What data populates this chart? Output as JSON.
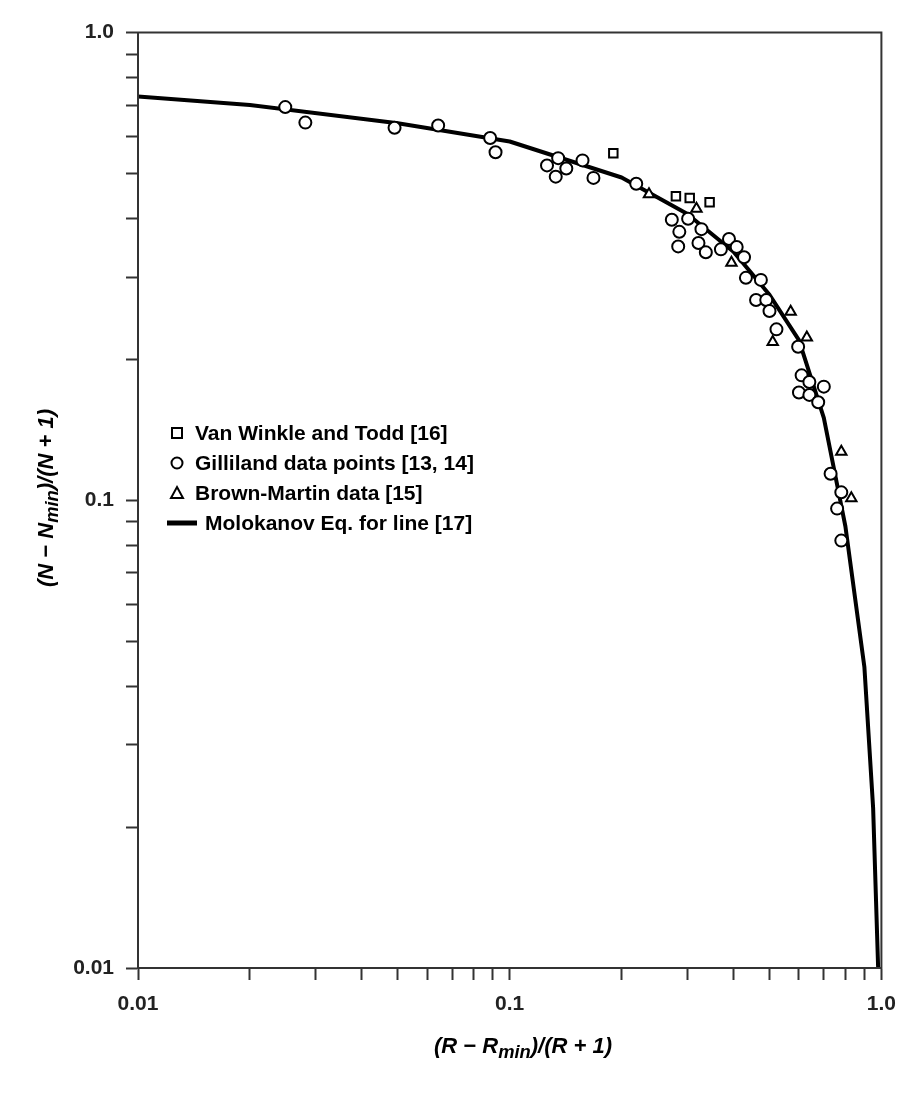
{
  "chart_data": {
    "type": "scatter",
    "xlabel": "(R − R$_{min}$)/(R + 1)",
    "ylabel": "(N − N$_{min}$)/(N + 1)",
    "log": "xy",
    "grid": false,
    "legend": "left",
    "xlim": [
      0.01,
      1
    ],
    "ylim": [
      0.01,
      1
    ],
    "xticks": [
      0.01,
      {
        "value": 0.02,
        "label": null
      },
      {
        "value": 0.03,
        "label": null
      },
      {
        "value": 0.04,
        "label": null
      },
      {
        "value": 0.05,
        "label": null
      },
      {
        "value": 0.06,
        "label": null
      },
      {
        "value": 0.07,
        "label": null
      },
      {
        "value": 0.08,
        "label": null
      },
      {
        "value": 0.09,
        "label": null
      },
      0.1,
      {
        "value": 0.2,
        "label": null
      },
      {
        "value": 0.3,
        "label": null
      },
      {
        "value": 0.4,
        "label": null
      },
      {
        "value": 0.5,
        "label": null
      },
      {
        "value": 0.6,
        "label": null
      },
      {
        "value": 0.7,
        "label": null
      },
      {
        "value": 0.8,
        "label": null
      },
      {
        "value": 0.9,
        "label": null
      },
      {
        "value": 1,
        "label": "1.0"
      }
    ],
    "yticks": [
      0.01,
      {
        "value": 0.02,
        "label": null
      },
      {
        "value": 0.03,
        "label": null
      },
      {
        "value": 0.04,
        "label": null
      },
      {
        "value": 0.05,
        "label": null
      },
      {
        "value": 0.06,
        "label": null
      },
      {
        "value": 0.07,
        "label": null
      },
      {
        "value": 0.08,
        "label": null
      },
      {
        "value": 0.09,
        "label": null
      },
      0.1,
      {
        "value": 0.2,
        "label": null
      },
      {
        "value": 0.3,
        "label": null
      },
      {
        "value": 0.4,
        "label": null
      },
      {
        "value": 0.5,
        "label": null
      },
      {
        "value": 0.6,
        "label": null
      },
      {
        "value": 0.7,
        "label": null
      },
      {
        "value": 0.8,
        "label": null
      },
      {
        "value": 0.9,
        "label": null
      },
      {
        "value": 1,
        "label": "1.0"
      }
    ],
    "series": [
      {
        "name": "Van Winkle and Todd [16]",
        "type": "scatter",
        "marker": "square",
        "color": "#000000",
        "x": [
          0.19,
          0.28,
          0.305,
          0.345
        ],
        "values": [
          0.552,
          0.447,
          0.443,
          0.434
        ]
      },
      {
        "name": "Gilliland data points [13, 14]",
        "type": "scatter",
        "marker": "circle",
        "color": "#000000",
        "x": [
          0.0249,
          0.0282,
          0.049,
          0.0642,
          0.0886,
          0.0916,
          0.126,
          0.135,
          0.133,
          0.142,
          0.157,
          0.168,
          0.219,
          0.273,
          0.286,
          0.284,
          0.302,
          0.322,
          0.328,
          0.337,
          0.37,
          0.389,
          0.408,
          0.427,
          0.432,
          0.474,
          0.46,
          0.49,
          0.5,
          0.522,
          0.597,
          0.61,
          0.6,
          0.64,
          0.64,
          0.7,
          0.676,
          0.73,
          0.78,
          0.76,
          0.78
        ],
        "values": [
          0.693,
          0.642,
          0.626,
          0.633,
          0.595,
          0.555,
          0.52,
          0.539,
          0.492,
          0.512,
          0.533,
          0.489,
          0.475,
          0.398,
          0.375,
          0.349,
          0.4,
          0.355,
          0.38,
          0.339,
          0.344,
          0.362,
          0.348,
          0.331,
          0.299,
          0.296,
          0.268,
          0.268,
          0.254,
          0.232,
          0.213,
          0.185,
          0.17,
          0.179,
          0.168,
          0.175,
          0.162,
          0.114,
          0.104,
          0.096,
          0.082
        ]
      },
      {
        "name": "Brown-Martin data [15]",
        "type": "scatter",
        "marker": "triangle",
        "color": "#000000",
        "x": [
          0.237,
          0.318,
          0.395,
          0.57,
          0.51,
          0.63,
          0.78,
          0.83
        ],
        "values": [
          0.451,
          0.42,
          0.322,
          0.253,
          0.218,
          0.223,
          0.127,
          0.101
        ]
      },
      {
        "name": "Molokanov Eq. for line [17]",
        "type": "line",
        "marker": "none",
        "color": "#000000",
        "x": [
          0.01,
          0.02,
          0.05,
          0.1,
          0.2,
          0.3,
          0.4,
          0.5,
          0.6,
          0.7,
          0.8,
          0.9,
          0.95,
          0.98
        ],
        "values": [
          0.73,
          0.7,
          0.64,
          0.585,
          0.49,
          0.41,
          0.34,
          0.275,
          0.22,
          0.15,
          0.088,
          0.044,
          0.022,
          0.01
        ]
      }
    ]
  }
}
